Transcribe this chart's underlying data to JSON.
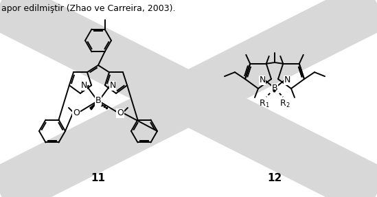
{
  "background_color": "#ffffff",
  "label_11": "11",
  "label_12": "12",
  "label_fontsize": 11,
  "fig_width": 5.49,
  "fig_height": 2.87,
  "dpi": 100,
  "line_color": "#000000",
  "line_width": 1.4,
  "header_text": "apor edilmiştir (Zhao ve Carreira, 2003).",
  "header_fontsize": 9,
  "wm_color": "#d8d8d8"
}
